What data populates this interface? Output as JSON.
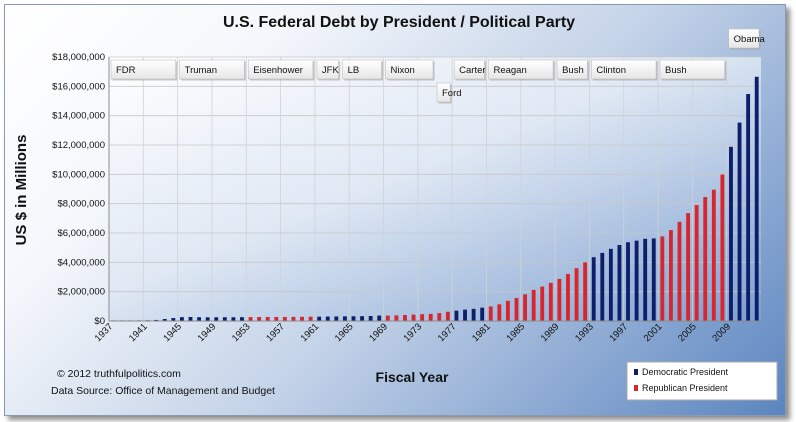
{
  "chart_data": {
    "type": "bar",
    "title": "U.S. Federal Debt by President / Political Party",
    "xlabel": "Fiscal Year",
    "ylabel": "US $ in Millions",
    "ylim": [
      0,
      18000000
    ],
    "yticks": [
      "$0",
      "$2,000,000",
      "$4,000,000",
      "$6,000,000",
      "$8,000,000",
      "$10,000,000",
      "$12,000,000",
      "$14,000,000",
      "$16,000,000",
      "$18,000,000"
    ],
    "xtick_labels": [
      "1937",
      "1941",
      "1945",
      "1949",
      "1953",
      "1957",
      "1961",
      "1965",
      "1969",
      "1973",
      "1977",
      "1981",
      "1985",
      "1989",
      "1993",
      "1997",
      "2001",
      "2005",
      "2009"
    ],
    "grid": true,
    "legend": {
      "placement": "bottom-right",
      "entries": [
        {
          "label": "Democratic President",
          "color": "#0d1f6b"
        },
        {
          "label": "Republican President",
          "color": "#d7262e"
        }
      ]
    },
    "colors": {
      "Democratic": "#0d1f6b",
      "Republican": "#d7262e"
    },
    "bars": [
      {
        "year": 1937,
        "value": 40000,
        "party": "Democratic"
      },
      {
        "year": 1938,
        "value": 40000,
        "party": "Democratic"
      },
      {
        "year": 1939,
        "value": 40000,
        "party": "Democratic"
      },
      {
        "year": 1940,
        "value": 43000,
        "party": "Democratic"
      },
      {
        "year": 1941,
        "value": 49000,
        "party": "Democratic"
      },
      {
        "year": 1942,
        "value": 72000,
        "party": "Democratic"
      },
      {
        "year": 1943,
        "value": 137000,
        "party": "Democratic"
      },
      {
        "year": 1944,
        "value": 201000,
        "party": "Democratic"
      },
      {
        "year": 1945,
        "value": 260000,
        "party": "Democratic"
      },
      {
        "year": 1946,
        "value": 271000,
        "party": "Democratic"
      },
      {
        "year": 1947,
        "value": 257000,
        "party": "Democratic"
      },
      {
        "year": 1948,
        "value": 252000,
        "party": "Democratic"
      },
      {
        "year": 1949,
        "value": 253000,
        "party": "Democratic"
      },
      {
        "year": 1950,
        "value": 257000,
        "party": "Democratic"
      },
      {
        "year": 1951,
        "value": 255000,
        "party": "Democratic"
      },
      {
        "year": 1952,
        "value": 259000,
        "party": "Democratic"
      },
      {
        "year": 1953,
        "value": 266000,
        "party": "Republican"
      },
      {
        "year": 1954,
        "value": 271000,
        "party": "Republican"
      },
      {
        "year": 1955,
        "value": 274000,
        "party": "Republican"
      },
      {
        "year": 1956,
        "value": 273000,
        "party": "Republican"
      },
      {
        "year": 1957,
        "value": 272000,
        "party": "Republican"
      },
      {
        "year": 1958,
        "value": 280000,
        "party": "Republican"
      },
      {
        "year": 1959,
        "value": 287000,
        "party": "Republican"
      },
      {
        "year": 1960,
        "value": 291000,
        "party": "Republican"
      },
      {
        "year": 1961,
        "value": 293000,
        "party": "Democratic"
      },
      {
        "year": 1962,
        "value": 303000,
        "party": "Democratic"
      },
      {
        "year": 1963,
        "value": 311000,
        "party": "Democratic"
      },
      {
        "year": 1964,
        "value": 317000,
        "party": "Democratic"
      },
      {
        "year": 1965,
        "value": 323000,
        "party": "Democratic"
      },
      {
        "year": 1966,
        "value": 329000,
        "party": "Democratic"
      },
      {
        "year": 1967,
        "value": 341000,
        "party": "Democratic"
      },
      {
        "year": 1968,
        "value": 370000,
        "party": "Democratic"
      },
      {
        "year": 1969,
        "value": 368000,
        "party": "Republican"
      },
      {
        "year": 1970,
        "value": 381000,
        "party": "Republican"
      },
      {
        "year": 1971,
        "value": 408000,
        "party": "Republican"
      },
      {
        "year": 1972,
        "value": 436000,
        "party": "Republican"
      },
      {
        "year": 1973,
        "value": 466000,
        "party": "Republican"
      },
      {
        "year": 1974,
        "value": 484000,
        "party": "Republican"
      },
      {
        "year": 1975,
        "value": 542000,
        "party": "Republican"
      },
      {
        "year": 1976,
        "value": 629000,
        "party": "Republican"
      },
      {
        "year": 1977,
        "value": 706000,
        "party": "Democratic"
      },
      {
        "year": 1978,
        "value": 777000,
        "party": "Democratic"
      },
      {
        "year": 1979,
        "value": 829000,
        "party": "Democratic"
      },
      {
        "year": 1980,
        "value": 909000,
        "party": "Democratic"
      },
      {
        "year": 1981,
        "value": 995000,
        "party": "Republican"
      },
      {
        "year": 1982,
        "value": 1137000,
        "party": "Republican"
      },
      {
        "year": 1983,
        "value": 1372000,
        "party": "Republican"
      },
      {
        "year": 1984,
        "value": 1565000,
        "party": "Republican"
      },
      {
        "year": 1985,
        "value": 1817000,
        "party": "Republican"
      },
      {
        "year": 1986,
        "value": 2121000,
        "party": "Republican"
      },
      {
        "year": 1987,
        "value": 2346000,
        "party": "Republican"
      },
      {
        "year": 1988,
        "value": 2601000,
        "party": "Republican"
      },
      {
        "year": 1989,
        "value": 2868000,
        "party": "Republican"
      },
      {
        "year": 1990,
        "value": 3206000,
        "party": "Republican"
      },
      {
        "year": 1991,
        "value": 3598000,
        "party": "Republican"
      },
      {
        "year": 1992,
        "value": 4002000,
        "party": "Republican"
      },
      {
        "year": 1993,
        "value": 4351000,
        "party": "Democratic"
      },
      {
        "year": 1994,
        "value": 4643000,
        "party": "Democratic"
      },
      {
        "year": 1995,
        "value": 4921000,
        "party": "Democratic"
      },
      {
        "year": 1996,
        "value": 5181000,
        "party": "Democratic"
      },
      {
        "year": 1997,
        "value": 5369000,
        "party": "Democratic"
      },
      {
        "year": 1998,
        "value": 5478000,
        "party": "Democratic"
      },
      {
        "year": 1999,
        "value": 5606000,
        "party": "Democratic"
      },
      {
        "year": 2000,
        "value": 5629000,
        "party": "Democratic"
      },
      {
        "year": 2001,
        "value": 5770000,
        "party": "Republican"
      },
      {
        "year": 2002,
        "value": 6198000,
        "party": "Republican"
      },
      {
        "year": 2003,
        "value": 6760000,
        "party": "Republican"
      },
      {
        "year": 2004,
        "value": 7355000,
        "party": "Republican"
      },
      {
        "year": 2005,
        "value": 7905000,
        "party": "Republican"
      },
      {
        "year": 2006,
        "value": 8451000,
        "party": "Republican"
      },
      {
        "year": 2007,
        "value": 8951000,
        "party": "Republican"
      },
      {
        "year": 2008,
        "value": 9986000,
        "party": "Republican"
      },
      {
        "year": 2009,
        "value": 11876000,
        "party": "Democratic"
      },
      {
        "year": 2010,
        "value": 13529000,
        "party": "Democratic"
      },
      {
        "year": 2011,
        "value": 15476000,
        "party": "Democratic"
      },
      {
        "year": 2012,
        "value": 16651000,
        "party": "Democratic"
      }
    ],
    "presidents": [
      {
        "name": "FDR",
        "start": 1937,
        "end": 1944,
        "row": "top"
      },
      {
        "name": "Truman",
        "start": 1945,
        "end": 1952,
        "row": "top"
      },
      {
        "name": "Eisenhower",
        "start": 1953,
        "end": 1960,
        "row": "top"
      },
      {
        "name": "JFK",
        "start": 1961,
        "end": 1963,
        "row": "top"
      },
      {
        "name": "LB",
        "start": 1964,
        "end": 1968,
        "row": "top"
      },
      {
        "name": "Nixon",
        "start": 1969,
        "end": 1974,
        "row": "top"
      },
      {
        "name": "Ford",
        "start": 1975,
        "end": 1976,
        "row": "low"
      },
      {
        "name": "Carter",
        "start": 1977,
        "end": 1980,
        "row": "top"
      },
      {
        "name": "Reagan",
        "start": 1981,
        "end": 1988,
        "row": "top"
      },
      {
        "name": "Bush",
        "start": 1989,
        "end": 1992,
        "row": "top"
      },
      {
        "name": "Clinton",
        "start": 1993,
        "end": 2000,
        "row": "top"
      },
      {
        "name": "Bush",
        "start": 2001,
        "end": 2008,
        "row": "top"
      },
      {
        "name": "Obama",
        "start": 2009,
        "end": 2012,
        "row": "high"
      }
    ]
  },
  "footer": {
    "copyright": "© 2012  truthfulpolitics.com",
    "source": "Data Source:  Office of Management and Budget"
  }
}
